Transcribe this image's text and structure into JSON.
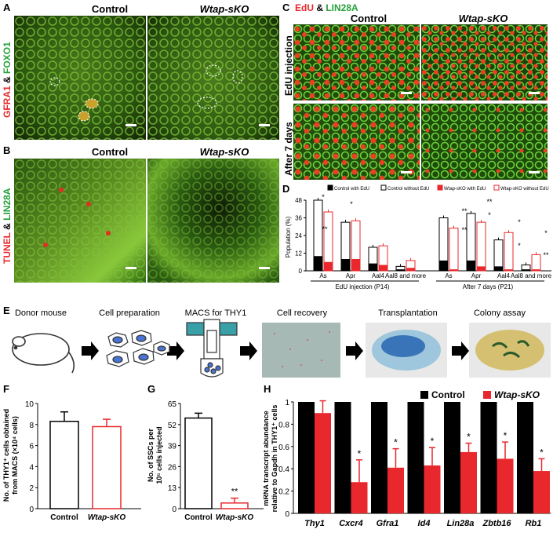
{
  "panels": {
    "A": {
      "label": "A",
      "title_left": "Control",
      "title_right": "Wtap-sKO",
      "stain_red": "GFRA1",
      "stain_amp": " & ",
      "stain_green": "FOXO1"
    },
    "B": {
      "label": "B",
      "title_left": "Control",
      "title_right": "Wtap-sKO",
      "stain_red": "TUNEL",
      "stain_amp": " & ",
      "stain_green": "LIN28A"
    },
    "C": {
      "label": "C",
      "stain_red": "EdU",
      "stain_amp": " & ",
      "stain_green": "LIN28A",
      "title_left": "Control",
      "title_right": "Wtap-sKO",
      "row1": "EdU injection",
      "row2": "After 7 days"
    },
    "D": {
      "label": "D"
    },
    "E": {
      "label": "E",
      "steps": [
        "Donor mouse",
        "Cell preparation",
        "MACS for THY1",
        "Cell recovery",
        "Transplantation",
        "Colony assay"
      ]
    },
    "F": {
      "label": "F"
    },
    "G": {
      "label": "G"
    },
    "H": {
      "label": "H"
    }
  },
  "chart_data": [
    {
      "id": "D",
      "type": "bar",
      "ylabel": "Population (%)",
      "ylim": [
        0,
        48
      ],
      "yticks": [
        0,
        12,
        24,
        36,
        48
      ],
      "legend": [
        "Control with EdU",
        "Control without EdU",
        "Wtap-sKO with EdU",
        "Wtap-sKO without EdU"
      ],
      "colors": {
        "control": "#000000",
        "sko": "#e8282c"
      },
      "groups": [
        {
          "name": "EdU injection (P14)",
          "categories": [
            "As",
            "Apr",
            "Aal4",
            "Aal8 and more"
          ],
          "control_total": [
            48,
            33,
            16,
            3
          ],
          "control_edu": [
            10,
            8,
            5,
            1
          ],
          "sko_total": [
            40,
            34,
            17,
            7
          ],
          "sko_edu": [
            6,
            8,
            4,
            2
          ]
        },
        {
          "name": "After 7 days (P21)",
          "categories": [
            "As",
            "Apr",
            "Aal4",
            "Aal8 and more"
          ],
          "control_total": [
            36,
            39,
            21,
            4
          ],
          "control_edu": [
            7,
            7,
            3,
            1
          ],
          "sko_total": [
            29,
            33,
            26,
            11
          ],
          "sko_edu": [
            1,
            3,
            1,
            1
          ]
        }
      ],
      "significance": [
        "*",
        "**",
        "*",
        "**",
        "**",
        "*",
        "**",
        "*",
        "*",
        "*",
        "**"
      ]
    },
    {
      "id": "F",
      "type": "bar",
      "categories": [
        "Control",
        "Wtap-sKO"
      ],
      "values": [
        8.3,
        7.8
      ],
      "errors": [
        0.9,
        0.7
      ],
      "ylabel": "No. of THY1+ cells obtained from MACS (×10^4 cells)",
      "ylabel_line1": "No. of THY1⁺ cells obtained",
      "ylabel_line2": "from MACS (×10⁴ cells)",
      "ylim": [
        0,
        10
      ],
      "yticks": [
        0,
        2,
        4,
        6,
        8,
        10
      ]
    },
    {
      "id": "G",
      "type": "bar",
      "categories": [
        "Control",
        "Wtap-sKO"
      ],
      "values": [
        56,
        3.5
      ],
      "errors": [
        3,
        3
      ],
      "ylabel_line1": "No. of SSCs per",
      "ylabel_line2": "10⁵ cells injected",
      "ylim": [
        0,
        65
      ],
      "yticks": [
        0,
        13,
        26,
        39,
        52,
        65
      ],
      "significance": "**"
    },
    {
      "id": "H",
      "type": "bar",
      "categories": [
        "Thy1",
        "Cxcr4",
        "Gfra1",
        "Id4",
        "Lin28a",
        "Zbtb16",
        "Rb1"
      ],
      "series": [
        {
          "name": "Control",
          "values": [
            1,
            1,
            1,
            1,
            1,
            1,
            1
          ],
          "color": "#000000"
        },
        {
          "name": "Wtap-sKO",
          "values": [
            0.9,
            0.28,
            0.41,
            0.43,
            0.55,
            0.49,
            0.38
          ],
          "errors": [
            0.11,
            0.2,
            0.17,
            0.16,
            0.08,
            0.15,
            0.11
          ],
          "color": "#e8282c"
        }
      ],
      "ylabel_line1": "mRNA transcript abundance",
      "ylabel_line2": "relative to Gapdh in THY1⁺ cells",
      "ylim": [
        0,
        1
      ],
      "yticks": [
        0,
        0.2,
        0.4,
        0.6,
        0.8,
        1
      ],
      "significance": [
        "",
        "*",
        "*",
        "*",
        "*",
        "*",
        "*"
      ]
    }
  ]
}
